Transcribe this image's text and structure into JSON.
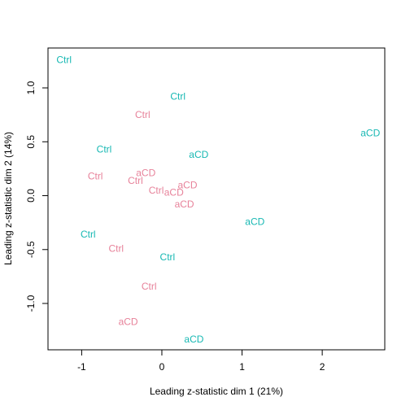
{
  "chart_data": {
    "type": "scatter",
    "xlabel": "Leading z-statistic dim 1 (21%)",
    "ylabel": "Leading z-statistic dim 2 (14%)",
    "xlim": [
      -1.42,
      2.78
    ],
    "ylim": [
      -1.43,
      1.37
    ],
    "x_ticks": [
      -1,
      0,
      1,
      2
    ],
    "y_ticks": [
      -1.0,
      -0.5,
      0.0,
      0.5,
      1.0
    ],
    "x_tick_labels": [
      "-1",
      "0",
      "1",
      "2"
    ],
    "y_tick_labels": [
      "-1.0",
      "-0.5",
      "0.0",
      "0.5",
      "1.0"
    ],
    "colors": {
      "pink": "#e7829a",
      "teal": "#17b8b3"
    },
    "points": [
      {
        "label": "Ctrl",
        "x": -1.22,
        "y": 1.26,
        "color": "teal"
      },
      {
        "label": "Ctrl",
        "x": 0.2,
        "y": 0.92,
        "color": "teal"
      },
      {
        "label": "Ctrl",
        "x": -0.24,
        "y": 0.75,
        "color": "pink"
      },
      {
        "label": "aCD",
        "x": 2.6,
        "y": 0.58,
        "color": "teal"
      },
      {
        "label": "Ctrl",
        "x": -0.72,
        "y": 0.43,
        "color": "teal"
      },
      {
        "label": "aCD",
        "x": 0.46,
        "y": 0.38,
        "color": "teal"
      },
      {
        "label": "Ctrl",
        "x": -0.83,
        "y": 0.18,
        "color": "pink"
      },
      {
        "label": "aCD",
        "x": -0.2,
        "y": 0.21,
        "color": "pink"
      },
      {
        "label": "Ctrl",
        "x": -0.33,
        "y": 0.14,
        "color": "pink"
      },
      {
        "label": "aCD",
        "x": 0.32,
        "y": 0.1,
        "color": "pink"
      },
      {
        "label": "Ctrl",
        "x": -0.07,
        "y": 0.05,
        "color": "pink"
      },
      {
        "label": "aCD",
        "x": 0.15,
        "y": 0.03,
        "color": "pink"
      },
      {
        "label": "aCD",
        "x": 0.28,
        "y": -0.08,
        "color": "pink"
      },
      {
        "label": "aCD",
        "x": 1.16,
        "y": -0.24,
        "color": "teal"
      },
      {
        "label": "Ctrl",
        "x": -0.92,
        "y": -0.36,
        "color": "teal"
      },
      {
        "label": "Ctrl",
        "x": -0.57,
        "y": -0.49,
        "color": "pink"
      },
      {
        "label": "Ctrl",
        "x": 0.07,
        "y": -0.57,
        "color": "teal"
      },
      {
        "label": "Ctrl",
        "x": -0.16,
        "y": -0.84,
        "color": "pink"
      },
      {
        "label": "aCD",
        "x": -0.42,
        "y": -1.17,
        "color": "pink"
      },
      {
        "label": "aCD",
        "x": 0.4,
        "y": -1.33,
        "color": "teal"
      }
    ]
  }
}
